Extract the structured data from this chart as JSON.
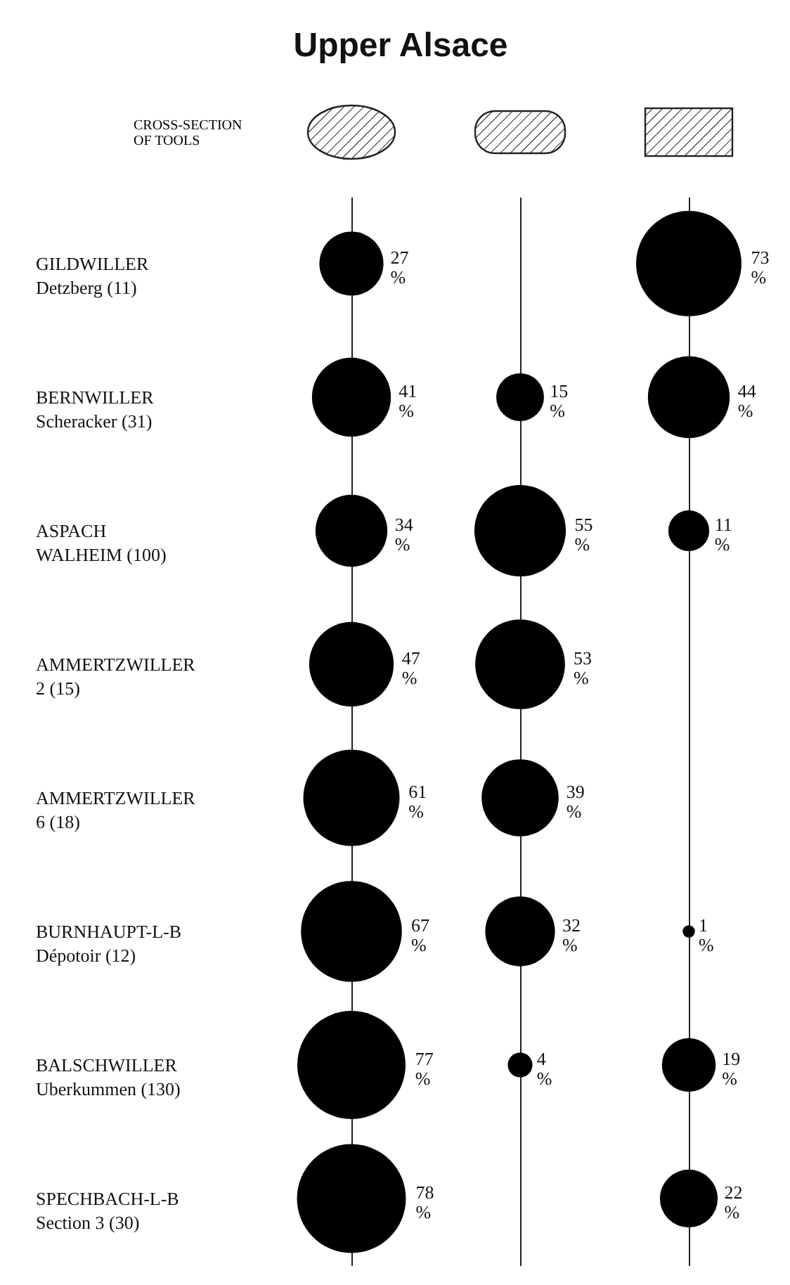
{
  "chart_data": {
    "type": "other",
    "title": "Upper Alsace",
    "annotations": [
      "CROSS-SECTION\nOF TOOLS"
    ],
    "categories": [
      "GILDWILLER\nDetzberg (11)",
      "BERNWILLER\nScheracker (31)",
      "ASPACH\nWALHEIM (100)",
      "AMMERTZWILLER\n2 (15)",
      "AMMERTZWILLER\n6 (18)",
      "BURNHAUPT-L-B\nDépotoir (12)",
      "BALSCHWILLER\nUberkummen (130)",
      "SPECHBACH-L-B\nSection 3 (30)"
    ],
    "series": [
      {
        "color": "#000000",
        "values": [
          27,
          41,
          34,
          47,
          61,
          67,
          77,
          78
        ],
        "value_labels": [
          "27\n%",
          "41\n%",
          "34\n%",
          "47\n%",
          "61\n%",
          "67\n%",
          "77\n%",
          "78\n%"
        ]
      },
      {
        "color": "#000000",
        "values": [
          null,
          15,
          55,
          53,
          39,
          32,
          4,
          null
        ],
        "value_labels": [
          null,
          "15\n%",
          "55\n%",
          "53\n%",
          "39\n%",
          "32\n%",
          "4\n%",
          null
        ]
      },
      {
        "color": "#000000",
        "values": [
          73,
          44,
          11,
          null,
          null,
          1,
          19,
          22
        ],
        "value_labels": [
          "73\n%",
          "44\n%",
          "11\n%",
          null,
          null,
          "1\n%",
          "19\n%",
          "22\n%"
        ]
      }
    ]
  }
}
